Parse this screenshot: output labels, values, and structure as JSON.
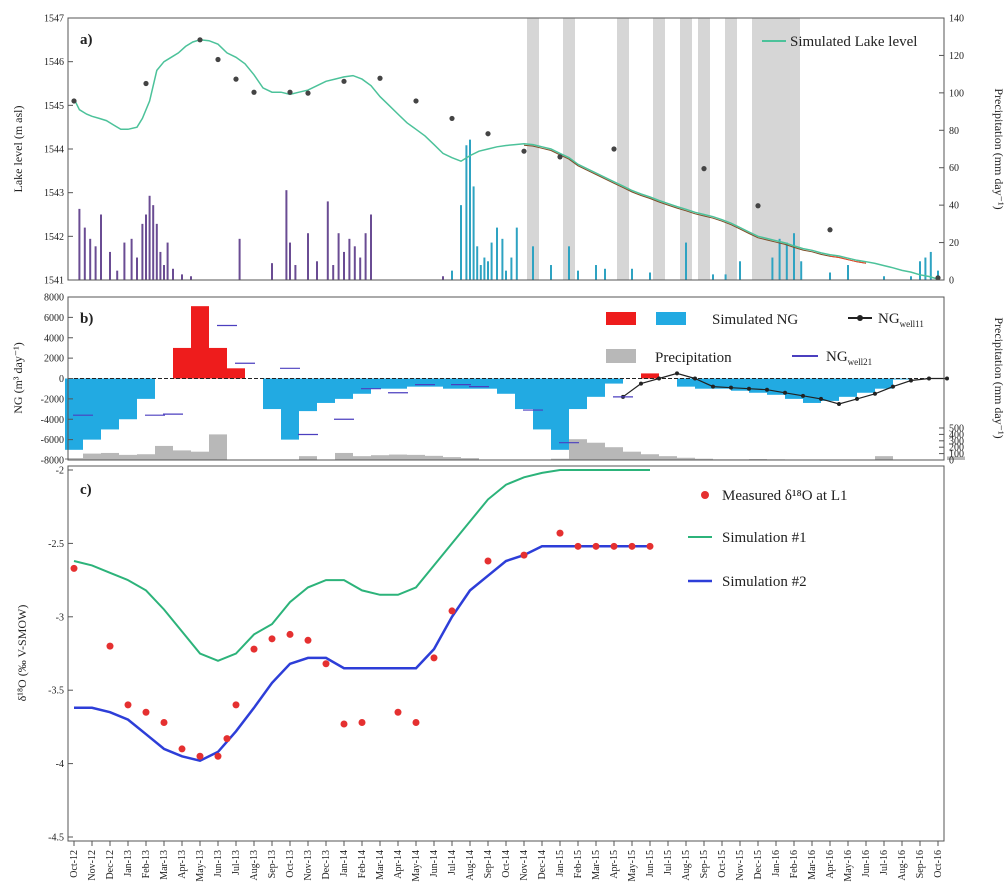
{
  "x_axis": {
    "tick_labels": [
      "Oct-12",
      "Nov-12",
      "Dec-12",
      "Jan-13",
      "Feb-13",
      "Mar-13",
      "Apr-13",
      "May-13",
      "Jun-13",
      "Jul-13",
      "Aug-13",
      "Sep-13",
      "Oct-13",
      "Nov-13",
      "Dec-13",
      "Jan-14",
      "Feb-14",
      "Mar-14",
      "Apr-14",
      "May-14",
      "Jun-14",
      "Jul-14",
      "Aug-14",
      "Sep-14",
      "Oct-14",
      "Nov-14",
      "Dec-14",
      "Jan-15",
      "Feb-15",
      "Mar-15",
      "Apr-15",
      "May-15",
      "Jun-15",
      "Jul-15",
      "Aug-15",
      "Sep-15",
      "Oct-15",
      "Nov-15",
      "Dec-15",
      "Jan-16",
      "Feb-16",
      "Mar-16",
      "Apr-16",
      "May-16",
      "Jun-16",
      "Jul-16",
      "Aug-16",
      "Sep-16",
      "Oct-16"
    ]
  },
  "chart_data": [
    {
      "panel": "a",
      "type": "line",
      "panel_label": "a)",
      "ylabel": "Lake level (m asl)",
      "y2label": "Precipitation (mm day⁻¹)",
      "ylim": [
        1541,
        1547
      ],
      "y_ticks": [
        1541,
        1542,
        1543,
        1544,
        1545,
        1546,
        1547
      ],
      "y2lim": [
        0,
        140
      ],
      "y2_ticks": [
        0,
        20,
        40,
        60,
        80,
        100,
        120,
        140
      ],
      "legend": [
        "Simulated Lake level"
      ],
      "colors": {
        "simulated": "#4cc29a",
        "measured": "#444444",
        "late_observed": "#7a4f28",
        "late_tail": "#e04a2a",
        "precip_early": "#6a4c93",
        "precip_late": "#2ea3c2",
        "shading": "#d6d6d6"
      },
      "series": [
        {
          "name": "Simulated Lake level",
          "x": [
            0,
            0.3,
            0.7,
            1,
            1.4,
            1.8,
            2.2,
            2.6,
            3,
            3.5,
            3.8,
            4.2,
            4.6,
            5,
            5.4,
            5.8,
            6.2,
            6.6,
            7,
            7.5,
            8,
            8.5,
            9,
            9.5,
            10,
            10.5,
            11,
            11.5,
            12,
            12.5,
            13,
            13.5,
            14,
            14.5,
            15,
            15.5,
            16,
            16.5,
            17,
            17.5,
            18,
            18.5,
            19,
            19.5,
            20,
            20.5,
            21,
            21.5,
            22,
            22.5,
            23,
            23.5,
            24,
            24.5,
            25,
            25.5,
            26,
            26.5,
            27,
            27.5,
            28,
            28.5,
            29,
            29.5,
            30,
            30.5,
            31,
            31.5,
            32,
            32.5,
            33,
            33.5,
            34,
            34.5,
            35,
            35.5,
            36,
            36.5,
            37,
            37.5,
            38,
            38.5,
            39,
            39.5,
            40,
            40.5,
            41,
            41.5,
            42,
            42.5,
            43,
            43.5,
            44,
            44.5,
            45,
            45.5,
            46,
            46.5,
            47,
            47.5,
            48
          ],
          "y": [
            1545.15,
            1544.9,
            1544.8,
            1544.75,
            1544.7,
            1544.65,
            1544.55,
            1544.45,
            1544.45,
            1544.5,
            1544.7,
            1545.1,
            1545.8,
            1546.0,
            1546.1,
            1546.2,
            1546.35,
            1546.45,
            1546.5,
            1546.48,
            1546.4,
            1546.2,
            1546.1,
            1545.95,
            1545.7,
            1545.4,
            1545.3,
            1545.3,
            1545.25,
            1545.3,
            1545.35,
            1545.45,
            1545.55,
            1545.6,
            1545.65,
            1545.68,
            1545.6,
            1545.45,
            1545.2,
            1545.0,
            1544.8,
            1544.6,
            1544.45,
            1544.3,
            1544.1,
            1543.9,
            1543.8,
            1543.72,
            1543.85,
            1543.95,
            1544.0,
            1544.05,
            1544.08,
            1544.1,
            1544.12,
            1544.1,
            1544.05,
            1544.0,
            1543.9,
            1543.8,
            1543.65,
            1543.55,
            1543.45,
            1543.35,
            1543.25,
            1543.15,
            1543.05,
            1542.97,
            1542.9,
            1542.82,
            1542.75,
            1542.68,
            1542.62,
            1542.55,
            1542.5,
            1542.45,
            1542.38,
            1542.3,
            1542.2,
            1542.1,
            1542.0,
            1541.95,
            1541.9,
            1541.85,
            1541.78,
            1541.72,
            1541.68,
            1541.62,
            1541.58,
            1541.55,
            1541.5,
            1541.45,
            1541.42,
            1541.38,
            1541.33,
            1541.28,
            1541.22,
            1541.18,
            1541.12,
            1541.08,
            1541.02
          ]
        },
        {
          "name": "Measured lake level",
          "x": [
            0,
            4,
            7,
            8,
            9,
            10,
            12,
            13,
            15,
            17,
            19,
            21,
            23,
            25,
            27,
            30,
            35,
            38,
            42,
            48
          ],
          "y": [
            1545.1,
            1545.5,
            1546.5,
            1546.05,
            1545.6,
            1545.3,
            1545.3,
            1545.28,
            1545.55,
            1545.62,
            1545.1,
            1544.7,
            1544.35,
            1543.95,
            1543.82,
            1544.0,
            1543.55,
            1542.7,
            1542.15,
            1541.05
          ]
        }
      ],
      "precipitation": {
        "x": [
          0.3,
          0.6,
          0.9,
          1.2,
          1.5,
          2.0,
          2.4,
          2.8,
          3.2,
          3.5,
          3.8,
          4.0,
          4.2,
          4.4,
          4.6,
          4.8,
          5.0,
          5.2,
          5.5,
          6.0,
          6.5,
          9.2,
          11.0,
          11.8,
          12.0,
          12.3,
          13.0,
          13.5,
          14.1,
          14.4,
          14.7,
          15.0,
          15.3,
          15.6,
          15.9,
          16.2,
          16.5,
          20.5,
          21.0,
          21.5,
          21.8,
          22.0,
          22.2,
          22.4,
          22.6,
          22.8,
          23.0,
          23.2,
          23.5,
          23.8,
          24.0,
          24.3,
          24.6,
          25.5,
          26.5,
          27.5,
          28.0,
          29.0,
          29.5,
          31.0,
          32.0,
          34.0,
          35.5,
          36.2,
          37.0,
          38.8,
          39.2,
          39.6,
          40.0,
          40.4,
          42.0,
          43.0,
          45.0,
          46.5,
          47.0,
          47.3,
          47.6,
          48.0
        ],
        "values": [
          38,
          28,
          22,
          18,
          35,
          15,
          5,
          20,
          22,
          12,
          30,
          35,
          45,
          40,
          30,
          15,
          8,
          20,
          6,
          3,
          2,
          22,
          9,
          48,
          20,
          8,
          25,
          10,
          42,
          8,
          25,
          15,
          22,
          18,
          12,
          25,
          35,
          2,
          5,
          40,
          72,
          75,
          50,
          18,
          8,
          12,
          10,
          20,
          28,
          22,
          5,
          12,
          28,
          18,
          8,
          18,
          5,
          8,
          6,
          6,
          4,
          20,
          3,
          3,
          10,
          12,
          22,
          20,
          25,
          10,
          4,
          8,
          2,
          2,
          10,
          12,
          15,
          5
        ]
      },
      "shaded_x": [
        25.5,
        27.5,
        30.5,
        32.5,
        34.0,
        35.0,
        36.5,
        38.0,
        38.5,
        39.0,
        39.5,
        40.0
      ]
    },
    {
      "panel": "b",
      "type": "bar",
      "panel_label": "b)",
      "ylabel": "NG (m³ day⁻¹)",
      "y2label": "Precipitation (mm day⁻¹)",
      "ylim": [
        -8000,
        8000
      ],
      "y_ticks": [
        -8000,
        -6000,
        -4000,
        -2000,
        0,
        2000,
        4000,
        6000,
        8000
      ],
      "y2lim": [
        0,
        500
      ],
      "y2_ticks": [
        0,
        100,
        200,
        300,
        400,
        500
      ],
      "legend": {
        "simulated": "Simulated NG",
        "precip": "Precipitation",
        "wellA_prefix": "NG",
        "wellA_sub": "well11",
        "wellB_prefix": "NG",
        "wellB_sub": "well21"
      },
      "colors": {
        "positive": "#ee1c1c",
        "negative": "#22aae2",
        "precip": "#b8b8b8",
        "wellA": "#222222",
        "wellB": "#4b3fbf"
      },
      "ng_values": [
        -7000,
        -6000,
        -5000,
        -4000,
        -2000,
        0,
        3000,
        7100,
        3000,
        1000,
        0,
        -3000,
        -6000,
        -3200,
        -2400,
        -2000,
        -1500,
        -1000,
        -1000,
        -800,
        -800,
        -1000,
        -1000,
        -1000,
        -1500,
        -3000,
        -5000,
        -7000,
        -3000,
        -1800,
        -500,
        0,
        500,
        0,
        -800,
        -1000,
        -1000,
        -1200,
        -1400,
        -1600,
        -2000,
        -2400,
        -2200,
        -1800,
        -1400,
        -1000,
        -100,
        0,
        0,
        0,
        0
      ],
      "precip_values": [
        30,
        100,
        110,
        80,
        90,
        220,
        150,
        130,
        400,
        0,
        0,
        0,
        0,
        60,
        0,
        110,
        60,
        75,
        85,
        80,
        65,
        45,
        30,
        0,
        0,
        0,
        0,
        20,
        325,
        270,
        200,
        130,
        90,
        60,
        35,
        20,
        10,
        10,
        15,
        10,
        5,
        5,
        0,
        0,
        0,
        60,
        0,
        0,
        0,
        55
      ],
      "well11": {
        "x": [
          30.5,
          31.5,
          32.5,
          33.5,
          34.5,
          35.5,
          36.5,
          37.5,
          38.5,
          39.5,
          40.5,
          41.5,
          42.5,
          43.5,
          44.5,
          45.5,
          46.5,
          47.5,
          48.5
        ],
        "y": [
          -1800,
          -500,
          0,
          500,
          0,
          -800,
          -900,
          -1000,
          -1100,
          -1400,
          -1700,
          -2000,
          -2500,
          -2000,
          -1500,
          -800,
          -200,
          0,
          0
        ]
      },
      "well21": {
        "x": [
          0.5,
          4.5,
          5.5,
          8.5,
          9.5,
          12,
          13,
          15,
          16.5,
          18,
          19.5,
          21.5,
          22.5,
          25.5,
          27.5,
          30.5
        ],
        "y": [
          -3600,
          -3600,
          -3500,
          5200,
          1500,
          1000,
          -5500,
          -4000,
          -1000,
          -1400,
          -600,
          -600,
          -800,
          -3100,
          -6300,
          -1800
        ]
      }
    },
    {
      "panel": "c",
      "type": "line",
      "panel_label": "c)",
      "ylabel": "δ¹⁸O (‰ V-SMOW)",
      "ylim": [
        -4.5,
        -2
      ],
      "y_ticks": [
        -4.5,
        -4,
        -3.5,
        -3,
        -2.5,
        -2
      ],
      "y_tick_labels": [
        "-4.5",
        "-4",
        "-3.5",
        "-3",
        "-2.5",
        "-2"
      ],
      "legend": {
        "measured": "Measured δ¹⁸O at L1",
        "sim1": "Simulation #1",
        "sim2": "Simulation #2"
      },
      "colors": {
        "measured": "#e53030",
        "sim1": "#2cb37a",
        "sim2": "#2d3ed8"
      },
      "series": [
        {
          "name": "Measured δ¹⁸O at L1",
          "x": [
            0,
            2,
            3,
            4,
            5,
            6,
            7,
            8,
            8.5,
            9,
            10,
            11,
            12,
            13,
            14,
            15,
            16,
            18,
            19,
            20,
            21,
            23,
            25,
            27,
            28,
            29,
            30,
            31,
            32
          ],
          "y": [
            -2.67,
            -3.2,
            -3.6,
            -3.65,
            -3.72,
            -3.9,
            -3.95,
            -3.95,
            -3.83,
            -3.6,
            -3.22,
            -3.15,
            -3.12,
            -3.16,
            -3.32,
            -3.73,
            -3.72,
            -3.65,
            -3.72,
            -3.28,
            -2.96,
            -2.62,
            -2.58,
            -2.43,
            -2.52,
            -2.52,
            -2.52,
            -2.52,
            -2.52
          ]
        },
        {
          "name": "Simulation #1",
          "x": [
            0,
            1,
            2,
            3,
            4,
            5,
            6,
            7,
            8,
            9,
            10,
            11,
            12,
            13,
            14,
            15,
            16,
            17,
            18,
            19,
            20,
            21,
            22,
            23,
            24,
            25,
            26,
            27,
            28,
            29,
            30,
            31,
            32
          ],
          "y": [
            -2.62,
            -2.65,
            -2.7,
            -2.75,
            -2.82,
            -2.95,
            -3.1,
            -3.25,
            -3.3,
            -3.25,
            -3.12,
            -3.05,
            -2.9,
            -2.8,
            -2.75,
            -2.75,
            -2.82,
            -2.85,
            -2.85,
            -2.8,
            -2.65,
            -2.5,
            -2.35,
            -2.2,
            -2.1,
            -2.05,
            -2.02,
            -2.0,
            -2.0,
            -2.0,
            -2.0,
            -2.0,
            -2.0
          ]
        },
        {
          "name": "Simulation #2",
          "x": [
            0,
            1,
            2,
            3,
            4,
            5,
            6,
            7,
            8,
            9,
            10,
            11,
            12,
            13,
            14,
            15,
            16,
            17,
            18,
            19,
            20,
            21,
            22,
            23,
            24,
            25,
            26,
            27,
            28,
            29,
            30,
            31,
            32
          ],
          "y": [
            -3.62,
            -3.62,
            -3.65,
            -3.7,
            -3.8,
            -3.9,
            -3.95,
            -3.98,
            -3.92,
            -3.78,
            -3.62,
            -3.45,
            -3.32,
            -3.28,
            -3.28,
            -3.35,
            -3.35,
            -3.35,
            -3.35,
            -3.35,
            -3.22,
            -3.0,
            -2.82,
            -2.72,
            -2.62,
            -2.58,
            -2.52,
            -2.52,
            -2.52,
            -2.52,
            -2.52,
            -2.52,
            -2.52
          ]
        }
      ]
    }
  ]
}
